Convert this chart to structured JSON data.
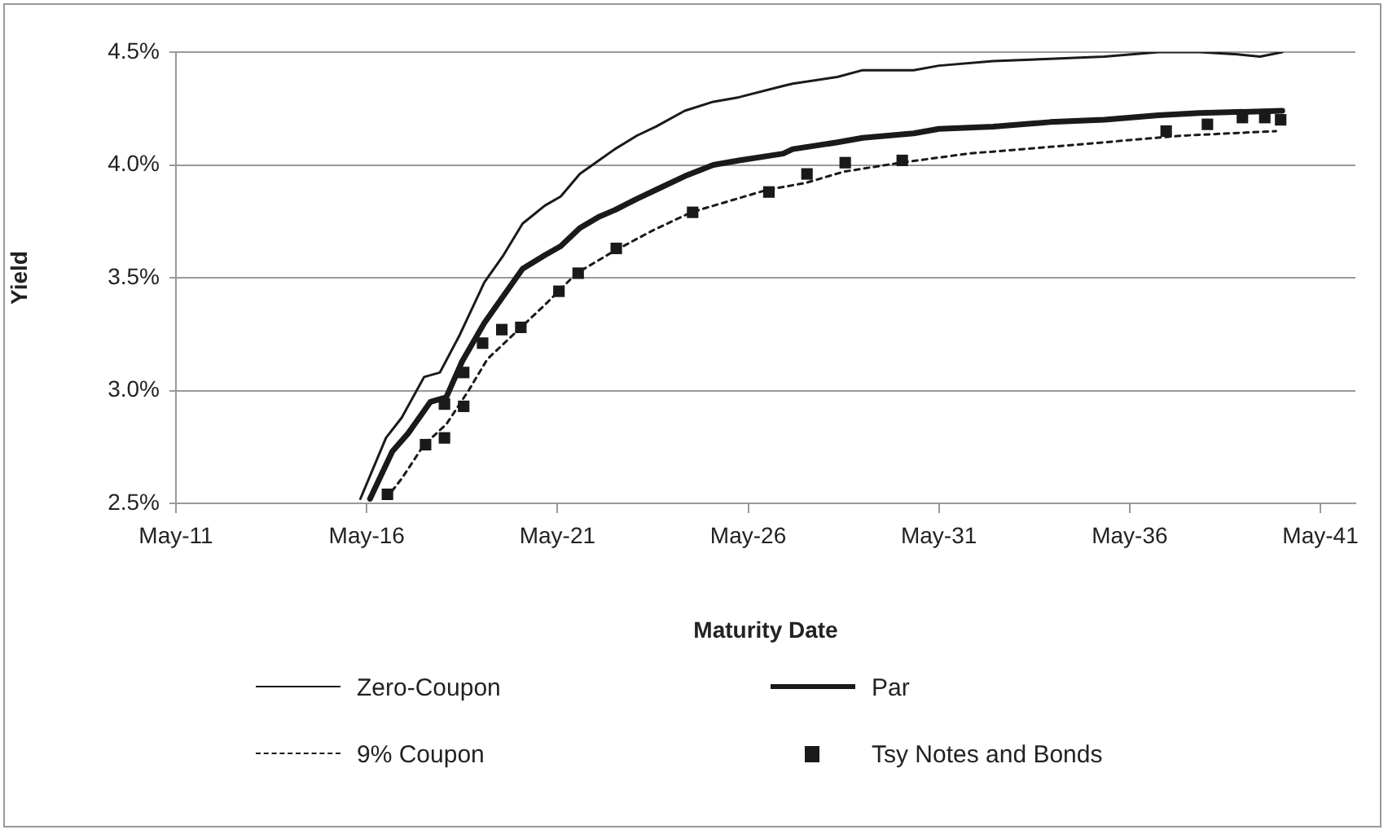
{
  "chart_data": {
    "type": "line",
    "xlabel": "Maturity Date",
    "ylabel": "Yield",
    "xlim": [
      "2011-05-01",
      "2042-04-01"
    ],
    "xticks": [
      {
        "value": "2011-05-01",
        "label": "May-11"
      },
      {
        "value": "2016-05-01",
        "label": "May-16"
      },
      {
        "value": "2021-05-01",
        "label": "May-21"
      },
      {
        "value": "2026-05-01",
        "label": "May-26"
      },
      {
        "value": "2031-05-01",
        "label": "May-31"
      },
      {
        "value": "2036-05-01",
        "label": "May-36"
      },
      {
        "value": "2041-05-01",
        "label": "May-41"
      }
    ],
    "ylim": [
      2.5,
      4.5
    ],
    "yticks": [
      {
        "value": 2.5,
        "label": "2.5%"
      },
      {
        "value": 3.0,
        "label": "3.0%"
      },
      {
        "value": 3.5,
        "label": "3.5%"
      },
      {
        "value": 4.0,
        "label": "4.0%"
      },
      {
        "value": 4.5,
        "label": "4.5%"
      }
    ],
    "grid": "y",
    "legend": "bottom",
    "series": [
      {
        "name": "Zero-Coupon",
        "color": "#1a1a1a",
        "line_style": "solid",
        "marker": "none",
        "x": [
          "2016-03",
          "2016-11",
          "2017-04",
          "2017-11",
          "2018-04",
          "2018-10",
          "2019-06",
          "2019-12",
          "2020-06",
          "2021-01",
          "2021-06",
          "2021-12",
          "2022-06",
          "2022-11",
          "2023-06",
          "2023-12",
          "2024-09",
          "2025-06",
          "2026-02",
          "2027-04",
          "2027-07",
          "2028-09",
          "2029-05",
          "2030-09",
          "2031-05",
          "2032-10",
          "2034-04",
          "2035-09",
          "2037-02",
          "2038-03",
          "2039-03",
          "2039-10",
          "2040-05"
        ],
        "values": [
          2.52,
          2.79,
          2.88,
          3.06,
          3.08,
          3.24,
          3.48,
          3.6,
          3.74,
          3.82,
          3.86,
          3.96,
          4.02,
          4.07,
          4.13,
          4.17,
          4.24,
          4.28,
          4.3,
          4.35,
          4.36,
          4.39,
          4.42,
          4.42,
          4.44,
          4.46,
          4.47,
          4.48,
          4.5,
          4.5,
          4.49,
          4.48,
          4.5
        ]
      },
      {
        "name": "Par",
        "color": "#1a1a1a",
        "line_style": "solid",
        "marker": "none",
        "x": [
          "2016-06",
          "2017-01",
          "2017-06",
          "2018-01",
          "2018-06",
          "2018-11",
          "2019-06",
          "2019-12",
          "2020-06",
          "2021-01",
          "2021-06",
          "2021-12",
          "2022-06",
          "2022-11",
          "2023-06",
          "2023-12",
          "2024-09",
          "2025-06",
          "2026-02",
          "2027-04",
          "2027-07",
          "2028-09",
          "2029-05",
          "2030-09",
          "2031-05",
          "2032-10",
          "2034-04",
          "2035-09",
          "2037-02",
          "2038-03",
          "2040-05"
        ],
        "values": [
          2.52,
          2.73,
          2.81,
          2.95,
          2.97,
          3.13,
          3.3,
          3.42,
          3.54,
          3.6,
          3.64,
          3.72,
          3.77,
          3.8,
          3.85,
          3.89,
          3.95,
          4.0,
          4.02,
          4.05,
          4.07,
          4.1,
          4.12,
          4.14,
          4.16,
          4.17,
          4.19,
          4.2,
          4.22,
          4.23,
          4.24
        ]
      },
      {
        "name": "9% Coupon",
        "color": "#1a1a1a",
        "line_style": "dashed",
        "marker": "none",
        "x": [
          "2016-11",
          "2017-04",
          "2017-11",
          "2018-06",
          "2019-01",
          "2019-07",
          "2020-04",
          "2021-01",
          "2021-11",
          "2022-11",
          "2023-11",
          "2024-11",
          "2025-11",
          "2026-11",
          "2027-11",
          "2028-11",
          "2030-05",
          "2032-02",
          "2034-04",
          "2036-05",
          "2037-10",
          "2040-03"
        ],
        "values": [
          2.52,
          2.61,
          2.76,
          2.85,
          3.0,
          3.14,
          3.26,
          3.38,
          3.52,
          3.62,
          3.71,
          3.79,
          3.84,
          3.89,
          3.92,
          3.97,
          4.01,
          4.05,
          4.08,
          4.11,
          4.13,
          4.15
        ]
      },
      {
        "name": "Tsy Notes and Bonds",
        "type": "scatter",
        "color": "#1a1a1a",
        "marker": "square",
        "x": [
          "2016-11-15",
          "2017-11-15",
          "2018-05-15",
          "2018-05-15",
          "2018-11-15",
          "2018-11-15",
          "2019-05-15",
          "2019-11-15",
          "2020-05-15",
          "2021-05-15",
          "2021-11-15",
          "2022-11-15",
          "2024-11-15",
          "2026-11-15",
          "2027-11-15",
          "2028-11-15",
          "2030-05-15",
          "2037-04-15",
          "2038-05-15",
          "2039-04-15",
          "2039-11-15",
          "2040-04-15"
        ],
        "values": [
          2.54,
          2.76,
          2.79,
          2.94,
          2.93,
          3.08,
          3.21,
          3.27,
          3.28,
          3.44,
          3.52,
          3.63,
          3.79,
          3.88,
          3.96,
          4.01,
          4.02,
          4.15,
          4.18,
          4.21,
          4.21,
          4.2
        ]
      }
    ]
  }
}
